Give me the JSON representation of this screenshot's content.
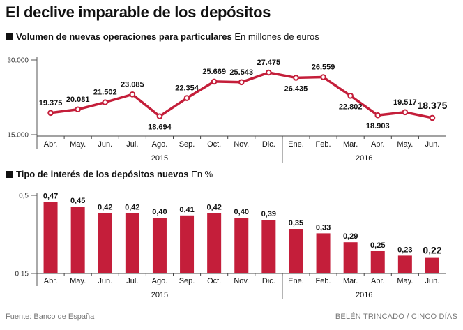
{
  "title": "El declive imparable de los depósitos",
  "footer": {
    "source": "Fuente: Banco de España",
    "credit": "BELÉN TRINCADO / CINCO DÍAS"
  },
  "colors": {
    "series": "#c41e3a",
    "axis": "#555555",
    "text": "#111111",
    "muted": "#777777"
  },
  "chart_data": [
    {
      "type": "line",
      "title": "Volumen de nuevas operaciones para particulares",
      "units": "En millones de euros",
      "categories": [
        "Abr.",
        "May.",
        "Jun.",
        "Jul.",
        "Ago.",
        "Sep.",
        "Oct.",
        "Nov.",
        "Dic.",
        "Ene.",
        "Feb.",
        "Mar.",
        "Abr.",
        "May.",
        "Jun."
      ],
      "values": [
        19375,
        20081,
        21502,
        23085,
        18694,
        22354,
        25669,
        25543,
        27475,
        26435,
        26559,
        22802,
        18903,
        19517,
        18375
      ],
      "labels": [
        "19.375",
        "20.081",
        "21.502",
        "23.085",
        "18.694",
        "22.354",
        "25.669",
        "25.543",
        "27.475",
        "26.435",
        "26.559",
        "22.802",
        "18.903",
        "19.517",
        "18.375"
      ],
      "ylim": [
        15000,
        30000
      ],
      "yticks": [
        "15.000",
        "30.000"
      ],
      "years": [
        {
          "label": "2015",
          "from": 0,
          "to": 8
        },
        {
          "label": "2016",
          "from": 9,
          "to": 14
        }
      ]
    },
    {
      "type": "bar",
      "title": "Tipo de interés de los depósitos nuevos",
      "units": "En %",
      "categories": [
        "Abr.",
        "May.",
        "Jun.",
        "Jul.",
        "Ago.",
        "Sep.",
        "Oct.",
        "Nov.",
        "Dic.",
        "Ene.",
        "Feb.",
        "Mar.",
        "Abr.",
        "May.",
        "Jun."
      ],
      "values": [
        0.47,
        0.45,
        0.42,
        0.42,
        0.4,
        0.41,
        0.42,
        0.4,
        0.39,
        0.35,
        0.33,
        0.29,
        0.25,
        0.23,
        0.22
      ],
      "labels": [
        "0,47",
        "0,45",
        "0,42",
        "0,42",
        "0,40",
        "0,41",
        "0,42",
        "0,40",
        "0,39",
        "0,35",
        "0,33",
        "0,29",
        "0,25",
        "0,23",
        "0,22"
      ],
      "ylim": [
        0.15,
        0.5
      ],
      "yticks": [
        "0,15",
        "0,5"
      ],
      "years": [
        {
          "label": "2015",
          "from": 0,
          "to": 8
        },
        {
          "label": "2016",
          "from": 9,
          "to": 14
        }
      ]
    }
  ]
}
